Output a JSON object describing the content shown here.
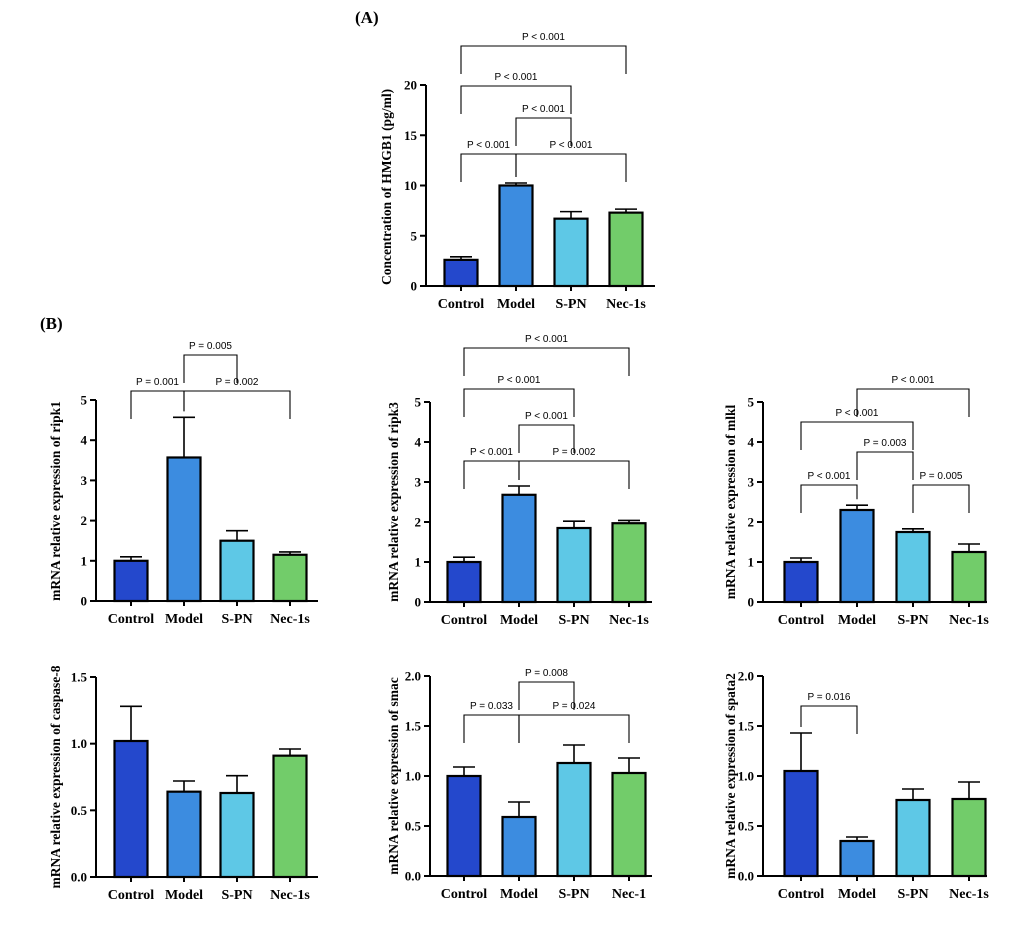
{
  "panels": {
    "a": "(A)",
    "b": "(B)"
  },
  "colors": [
    "#2448cc",
    "#3c8ce0",
    "#5ec8e6",
    "#72cc6a"
  ],
  "chart_data": [
    {
      "id": "hmgb1",
      "type": "bar",
      "title": "",
      "ylabel": "Concentration of HMGB1 (pg/ml)",
      "categories": [
        "Control",
        "Model",
        "S-PN",
        "Nec-1s"
      ],
      "values": [
        2.6,
        10.0,
        6.7,
        7.3
      ],
      "errors": [
        0.3,
        0.25,
        0.7,
        0.35
      ],
      "ylim": [
        0,
        20
      ],
      "yticks": [
        "0",
        "5",
        "10",
        "15",
        "20"
      ],
      "comparisons": [
        {
          "from": 0,
          "to": 3,
          "label": "P < 0.001"
        },
        {
          "from": 0,
          "to": 2,
          "label": "P < 0.001"
        },
        {
          "from": 1,
          "to": 2,
          "label": "P < 0.001"
        },
        {
          "from": 0,
          "to": 1,
          "label": "P < 0.001"
        },
        {
          "from": 1,
          "to": 3,
          "label": "P < 0.001"
        }
      ]
    },
    {
      "id": "ripk1",
      "type": "bar",
      "title": "",
      "ylabel": "mRNA relative expression of ripk1",
      "categories": [
        "Control",
        "Model",
        "S-PN",
        "Nec-1s"
      ],
      "values": [
        1.0,
        3.57,
        1.5,
        1.15
      ],
      "errors": [
        0.1,
        1.0,
        0.25,
        0.07
      ],
      "ylim": [
        0,
        5
      ],
      "yticks": [
        "0",
        "1",
        "2",
        "3",
        "4",
        "5"
      ],
      "comparisons": [
        {
          "from": 1,
          "to": 2,
          "label": "P = 0.005"
        },
        {
          "from": 0,
          "to": 1,
          "label": "P = 0.001"
        },
        {
          "from": 1,
          "to": 3,
          "label": "P = 0.002"
        }
      ]
    },
    {
      "id": "ripk3",
      "type": "bar",
      "title": "",
      "ylabel": "mRNA relative expression of ripk3",
      "categories": [
        "Control",
        "Model",
        "S-PN",
        "Nec-1s"
      ],
      "values": [
        1.0,
        2.68,
        1.85,
        1.97
      ],
      "errors": [
        0.12,
        0.22,
        0.17,
        0.07
      ],
      "ylim": [
        0,
        5
      ],
      "yticks": [
        "0",
        "1",
        "2",
        "3",
        "4",
        "5"
      ],
      "comparisons": [
        {
          "from": 0,
          "to": 3,
          "label": "P < 0.001"
        },
        {
          "from": 0,
          "to": 2,
          "label": "P < 0.001"
        },
        {
          "from": 1,
          "to": 2,
          "label": "P < 0.001"
        },
        {
          "from": 0,
          "to": 1,
          "label": "P < 0.001"
        },
        {
          "from": 1,
          "to": 3,
          "label": "P = 0.002"
        }
      ]
    },
    {
      "id": "mlkl",
      "type": "bar",
      "title": "",
      "ylabel": "mRNA relative expression of mlkl",
      "categories": [
        "Control",
        "Model",
        "S-PN",
        "Nec-1s"
      ],
      "values": [
        1.0,
        2.3,
        1.75,
        1.25
      ],
      "errors": [
        0.1,
        0.12,
        0.08,
        0.2
      ],
      "ylim": [
        0,
        5
      ],
      "yticks": [
        "0",
        "1",
        "2",
        "3",
        "4",
        "5"
      ],
      "comparisons": [
        {
          "from": 1,
          "to": 3,
          "label": "P < 0.001"
        },
        {
          "from": 0,
          "to": 2,
          "label": "P < 0.001"
        },
        {
          "from": 1,
          "to": 2,
          "label": "P = 0.003"
        },
        {
          "from": 0,
          "to": 1,
          "label": "P < 0.001"
        },
        {
          "from": 2,
          "to": 3,
          "label": "P = 0.005"
        }
      ]
    },
    {
      "id": "caspase8",
      "type": "bar",
      "title": "",
      "ylabel": "mRNA relative expression of caspase-8",
      "categories": [
        "Control",
        "Model",
        "S-PN",
        "Nec-1s"
      ],
      "values": [
        1.02,
        0.64,
        0.63,
        0.91
      ],
      "errors": [
        0.26,
        0.08,
        0.13,
        0.05
      ],
      "ylim": [
        0,
        1.5
      ],
      "yticks": [
        "0.0",
        "0.5",
        "1.0",
        "1.5"
      ],
      "comparisons": []
    },
    {
      "id": "smac",
      "type": "bar",
      "title": "",
      "ylabel": "mRNA relative expression of smac",
      "categories": [
        "Control",
        "Model",
        "S-PN",
        "Nec-1"
      ],
      "values": [
        1.0,
        0.59,
        1.13,
        1.03
      ],
      "errors": [
        0.09,
        0.15,
        0.18,
        0.15
      ],
      "ylim": [
        0,
        2.0
      ],
      "yticks": [
        "0.0",
        "0.5",
        "1.0",
        "1.5",
        "2.0"
      ],
      "comparisons": [
        {
          "from": 1,
          "to": 2,
          "label": "P = 0.008"
        },
        {
          "from": 0,
          "to": 1,
          "label": "P = 0.033"
        },
        {
          "from": 1,
          "to": 3,
          "label": "P = 0.024"
        }
      ]
    },
    {
      "id": "spata2",
      "type": "bar",
      "title": "",
      "ylabel": "mRNA relative expression of spata2",
      "categories": [
        "Control",
        "Model",
        "S-PN",
        "Nec-1s"
      ],
      "values": [
        1.05,
        0.35,
        0.76,
        0.77
      ],
      "errors": [
        0.38,
        0.04,
        0.11,
        0.17
      ],
      "ylim": [
        0,
        2.0
      ],
      "yticks": [
        "0.0",
        "0.5",
        "1.0",
        "1.5",
        "2.0"
      ],
      "comparisons": [
        {
          "from": 0,
          "to": 1,
          "label": "P = 0.016"
        }
      ]
    }
  ]
}
